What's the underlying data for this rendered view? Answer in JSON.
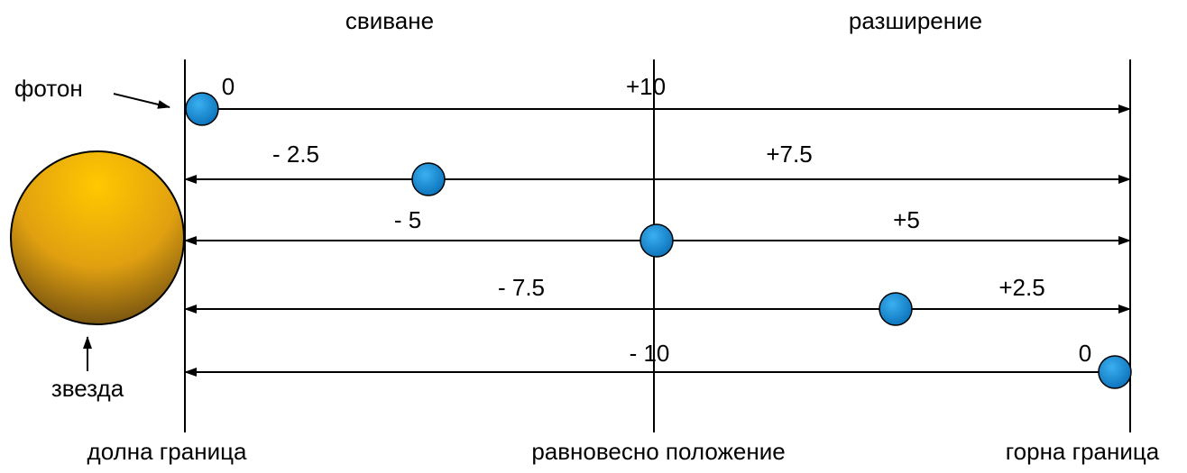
{
  "top_labels": {
    "left": "свиване",
    "right": "разширение"
  },
  "photon_label": "фотон",
  "star_label": "звезда",
  "bottom_labels": [
    "долна граница",
    "равновесно положение",
    "горна граница"
  ],
  "rows": [
    {
      "left": "0",
      "right": "+10"
    },
    {
      "left": "- 2.5",
      "right": "+7.5"
    },
    {
      "left": "- 5",
      "right": "+5"
    },
    {
      "left": "- 7.5",
      "right": "+2.5"
    },
    {
      "left": "- 10",
      "right": "0"
    }
  ]
}
